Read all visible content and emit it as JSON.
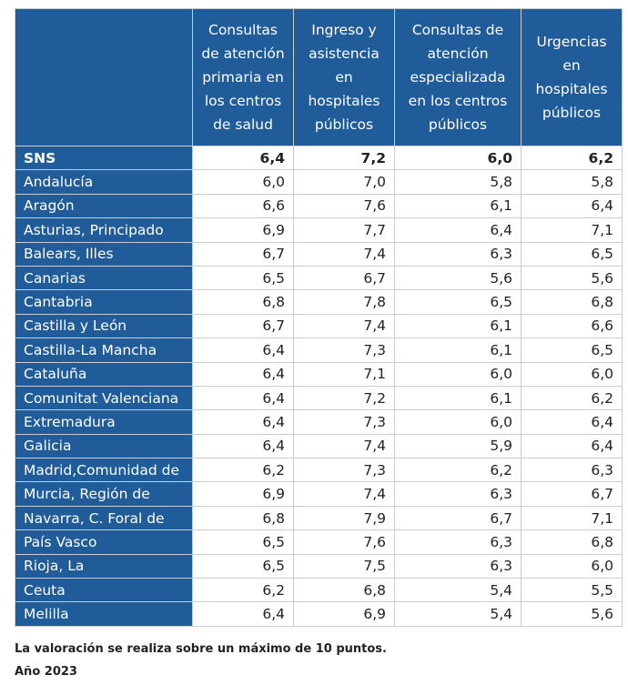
{
  "table": {
    "headers": [
      "",
      "Consultas de atención primaria en los centros de salud",
      "Ingreso y asistencia en hospitales públicos",
      "Consultas de atención especializada en los centros públicos",
      "Urgencias en hospitales públicos"
    ],
    "rows": [
      {
        "name": "SNS",
        "values": [
          "6,4",
          "7,2",
          "6,0",
          "6,2"
        ]
      },
      {
        "name": "Andalucía",
        "values": [
          "6,0",
          "7,0",
          "5,8",
          "5,8"
        ]
      },
      {
        "name": "Aragón",
        "values": [
          "6,6",
          "7,6",
          "6,1",
          "6,4"
        ]
      },
      {
        "name": "Asturias, Principado",
        "values": [
          "6,9",
          "7,7",
          "6,4",
          "7,1"
        ]
      },
      {
        "name": "Balears, Illes",
        "values": [
          "6,7",
          "7,4",
          "6,3",
          "6,5"
        ]
      },
      {
        "name": "Canarias",
        "values": [
          "6,5",
          "6,7",
          "5,6",
          "5,6"
        ]
      },
      {
        "name": "Cantabria",
        "values": [
          "6,8",
          "7,8",
          "6,5",
          "6,8"
        ]
      },
      {
        "name": "Castilla y León",
        "values": [
          "6,7",
          "7,4",
          "6,1",
          "6,6"
        ]
      },
      {
        "name": "Castilla-La Mancha",
        "values": [
          "6,4",
          "7,3",
          "6,1",
          "6,5"
        ]
      },
      {
        "name": "Cataluña",
        "values": [
          "6,4",
          "7,1",
          "6,0",
          "6,0"
        ]
      },
      {
        "name": "Comunitat Valenciana",
        "values": [
          "6,4",
          "7,2",
          "6,1",
          "6,2"
        ]
      },
      {
        "name": "Extremadura",
        "values": [
          "6,4",
          "7,3",
          "6,0",
          "6,4"
        ]
      },
      {
        "name": "Galicia",
        "values": [
          "6,4",
          "7,4",
          "5,9",
          "6,4"
        ]
      },
      {
        "name": "Madrid,Comunidad de",
        "values": [
          "6,2",
          "7,3",
          "6,2",
          "6,3"
        ]
      },
      {
        "name": "Murcia, Región de",
        "values": [
          "6,9",
          "7,4",
          "6,3",
          "6,7"
        ]
      },
      {
        "name": "Navarra, C. Foral de",
        "values": [
          "6,8",
          "7,9",
          "6,7",
          "7,1"
        ]
      },
      {
        "name": "País Vasco",
        "values": [
          "6,5",
          "7,6",
          "6,3",
          "6,8"
        ]
      },
      {
        "name": "Rioja, La",
        "values": [
          "6,5",
          "7,5",
          "6,3",
          "6,0"
        ]
      },
      {
        "name": "Ceuta",
        "values": [
          "6,2",
          "6,8",
          "5,4",
          "5,5"
        ]
      },
      {
        "name": "Melilla",
        "values": [
          "6,4",
          "6,9",
          "5,4",
          "5,6"
        ]
      }
    ]
  },
  "notes": {
    "scale": "La valoración se realiza sobre un máximo de 10 puntos.",
    "year": "Año 2023"
  },
  "colors": {
    "header_bg": "#1f5c99",
    "border": "#c9cdd2"
  }
}
